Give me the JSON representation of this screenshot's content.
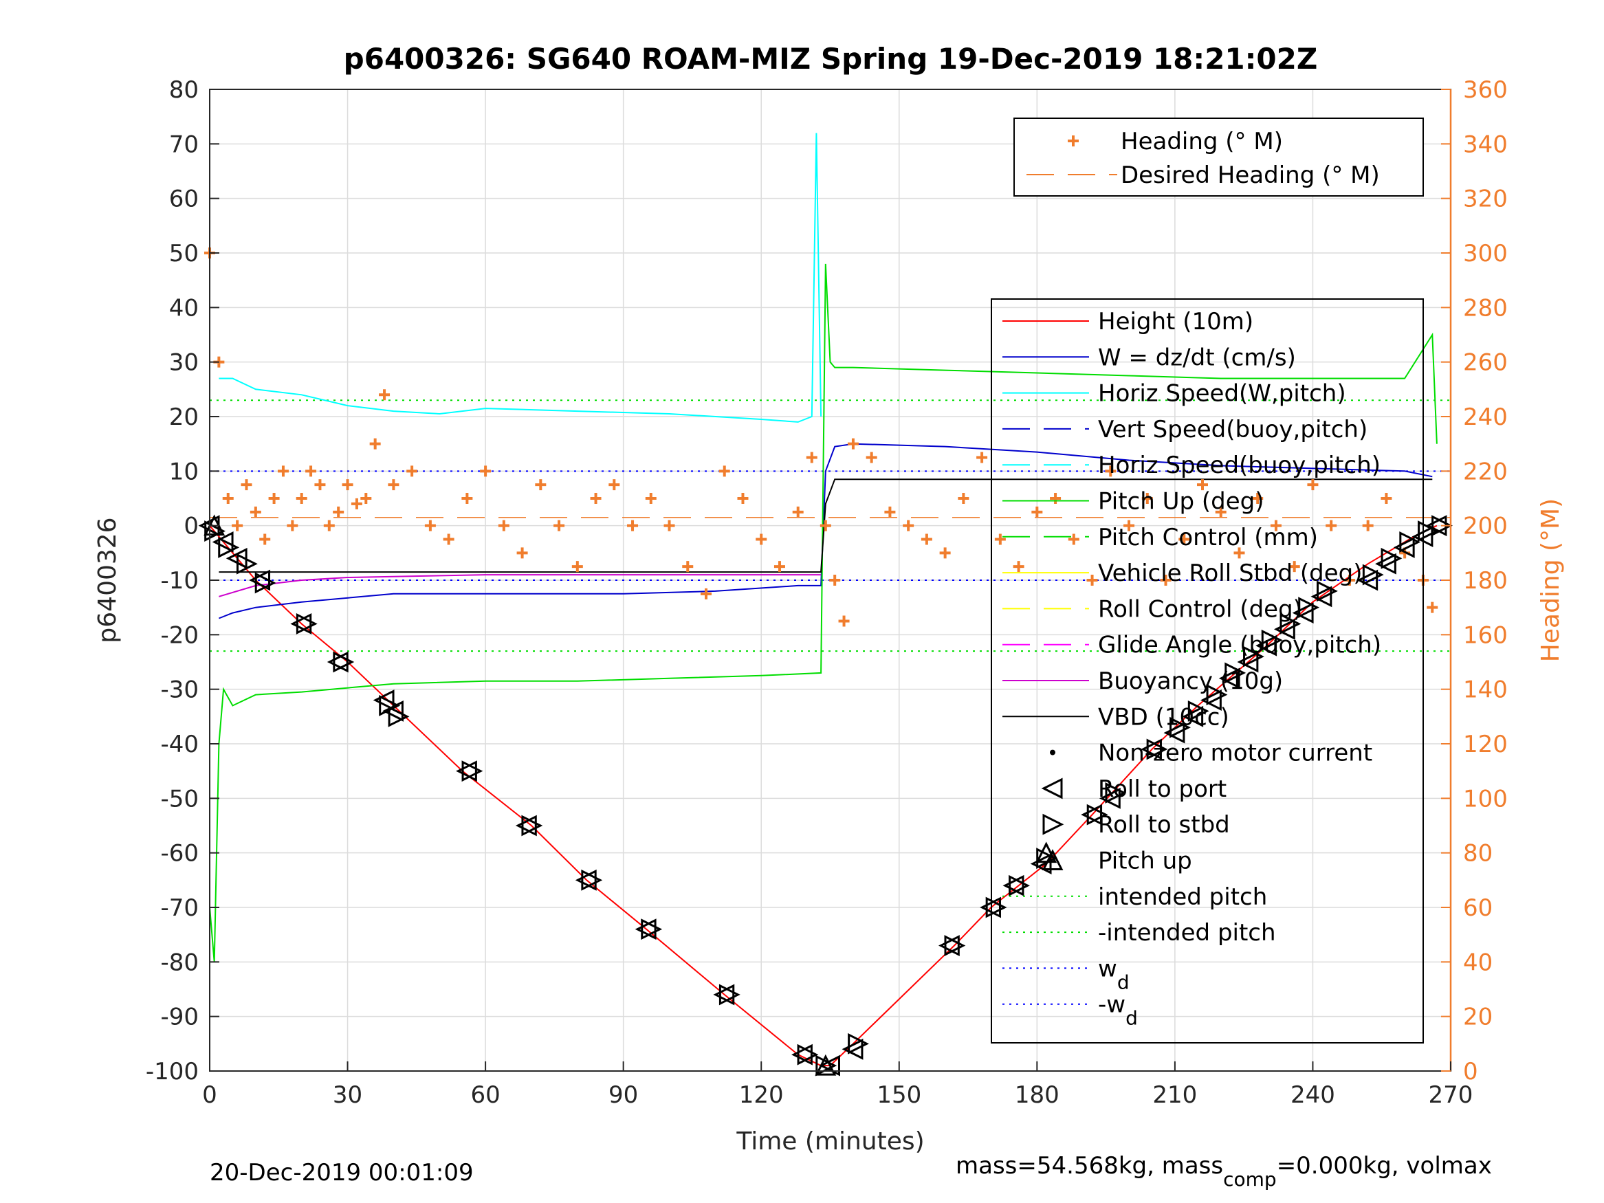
{
  "chart_data": {
    "type": "line",
    "title": "p6400326: SG640 ROAM-MIZ Spring 19-Dec-2019 18:21:02Z",
    "xlabel": "Time (minutes)",
    "ylabel": "p6400326",
    "y2label": "Heading (°M)",
    "xlim": [
      0,
      270
    ],
    "ylim": [
      -100,
      80
    ],
    "y2lim": [
      0,
      360
    ],
    "xticks": [
      0,
      30,
      60,
      90,
      120,
      150,
      180,
      210,
      240,
      270
    ],
    "yticks": [
      80,
      70,
      60,
      50,
      40,
      30,
      20,
      10,
      0,
      -10,
      -20,
      -30,
      -40,
      -50,
      -60,
      -70,
      -80,
      -90,
      -100
    ],
    "y2ticks": [
      360,
      340,
      320,
      300,
      280,
      260,
      240,
      220,
      200,
      180,
      160,
      140,
      120,
      100,
      80,
      60,
      40,
      20,
      0
    ],
    "grid": true,
    "heading_legend": [
      {
        "label": "Heading (° M)",
        "marker": "plus"
      },
      {
        "label": "Desired Heading (° M)",
        "style": "dashed"
      }
    ],
    "legend": [
      {
        "label": "Height (10m)",
        "style": "solid",
        "color": "#ff0000"
      },
      {
        "label": "W = dz/dt (cm/s)",
        "style": "solid",
        "color": "#0000cc"
      },
      {
        "label": "Horiz Speed(W,pitch)",
        "style": "solid",
        "color": "#00ffff"
      },
      {
        "label": "Vert Speed(buoy,pitch)",
        "style": "dashed",
        "color": "#0000cc"
      },
      {
        "label": "Horiz Speed(buoy,pitch)",
        "style": "dashed",
        "color": "#00ffff"
      },
      {
        "label": "Pitch Up (deg)",
        "style": "solid",
        "color": "#00dd00"
      },
      {
        "label": "Pitch Control (mm)",
        "style": "dashed",
        "color": "#00dd00"
      },
      {
        "label": "Vehicle Roll Stbd (deg)",
        "style": "solid",
        "color": "#ffff00"
      },
      {
        "label": "Roll Control (deg)",
        "style": "dashed",
        "color": "#ffff00"
      },
      {
        "label": "Glide Angle (buoy,pitch)",
        "style": "dashed",
        "color": "#ff00ff"
      },
      {
        "label": "Buoyancy (10g)",
        "style": "solid",
        "color": "#cc00cc"
      },
      {
        "label": "VBD (10cc)",
        "style": "solid",
        "color": "#000000"
      },
      {
        "label": "Non-zero motor current",
        "style": "dot",
        "color": "#000000"
      },
      {
        "label": "Roll to port",
        "style": "tri-left",
        "color": "#000000"
      },
      {
        "label": "Roll to stbd",
        "style": "tri-right",
        "color": "#000000"
      },
      {
        "label": "Pitch up",
        "style": "tri-up",
        "color": "#000000"
      },
      {
        "label": "intended pitch",
        "style": "dotted",
        "color": "#00dd00"
      },
      {
        "label": "-intended pitch",
        "style": "dotted",
        "color": "#00dd00"
      },
      {
        "label": "w",
        "sub": "d",
        "style": "dotted",
        "color": "#0000ff"
      },
      {
        "label": "-w",
        "sub": "d",
        "style": "dotted",
        "color": "#0000ff"
      }
    ],
    "series": [
      {
        "name": "Height (10m)",
        "color": "#ff0000",
        "x": [
          0,
          5,
          10,
          20,
          30,
          40,
          55,
          70,
          82,
          95,
          112,
          128,
          133,
          135,
          140,
          162,
          170,
          182,
          192,
          205,
          215,
          230,
          240,
          252,
          262,
          267
        ],
        "y": [
          0,
          -5,
          -10,
          -18,
          -25,
          -33,
          -45,
          -55,
          -65,
          -74,
          -86,
          -97,
          -99,
          -99,
          -95,
          -77,
          -70,
          -62,
          -53,
          -41,
          -33,
          -22,
          -14,
          -7,
          -2,
          0
        ]
      },
      {
        "name": "W = dz/dt (cm/s)",
        "color": "#0000cc",
        "x": [
          2,
          5,
          10,
          20,
          40,
          60,
          90,
          110,
          128,
          130,
          133,
          134,
          136,
          140,
          160,
          180,
          200,
          220,
          240,
          260,
          266
        ],
        "y": [
          -17,
          -16,
          -15,
          -14,
          -12.5,
          -12.5,
          -12.5,
          -12,
          -11,
          -11,
          -11,
          10,
          14.5,
          15,
          14.5,
          13.5,
          12,
          11,
          10.5,
          10,
          9
        ]
      },
      {
        "name": "Horiz Speed(W,pitch)",
        "color": "#00ffff",
        "x": [
          2,
          5,
          10,
          20,
          30,
          40,
          50,
          60,
          80,
          100,
          120,
          128,
          131,
          132,
          133
        ],
        "y": [
          27,
          27,
          25,
          24,
          22,
          21,
          20.5,
          21.5,
          21,
          20.5,
          19.5,
          19,
          20,
          72,
          20
        ]
      },
      {
        "name": "Pitch Up (deg)",
        "color": "#00dd00",
        "x": [
          0,
          1,
          2,
          3,
          5,
          10,
          20,
          40,
          60,
          80,
          100,
          120,
          133,
          134,
          135,
          136,
          140,
          160,
          180,
          200,
          220,
          240,
          260,
          266,
          267
        ],
        "y": [
          -70,
          -80,
          -40,
          -30,
          -33,
          -31,
          -30.5,
          -29,
          -28.5,
          -28.5,
          -28,
          -27.5,
          -27,
          48,
          30,
          29,
          29,
          28.5,
          28,
          27.5,
          27,
          27,
          27,
          35,
          15
        ]
      },
      {
        "name": "Buoyancy (10g)",
        "color": "#cc00cc",
        "x": [
          2,
          10,
          20,
          30,
          60,
          133
        ],
        "y": [
          -13,
          -11,
          -10,
          -9.5,
          -9,
          -9
        ]
      },
      {
        "name": "VBD (10cc)",
        "color": "#000000",
        "x": [
          2,
          60,
          133,
          134,
          136,
          266
        ],
        "y": [
          -8.5,
          -8.5,
          -8.5,
          4,
          8.5,
          8.5
        ]
      }
    ],
    "reference_lines": [
      {
        "name": "intended pitch",
        "y": 23,
        "color": "#00dd00"
      },
      {
        "name": "-intended pitch",
        "y": -23,
        "color": "#00dd00"
      },
      {
        "name": "w_d",
        "y": 10,
        "color": "#0000ff"
      },
      {
        "name": "-w_d",
        "y": -10,
        "color": "#0000ff"
      }
    ],
    "heading": {
      "desired_heading_deg": 203,
      "x": [
        0,
        2,
        4,
        6,
        8,
        10,
        12,
        14,
        16,
        18,
        20,
        22,
        24,
        26,
        28,
        30,
        32,
        34,
        36,
        38,
        40,
        44,
        48,
        52,
        56,
        60,
        64,
        68,
        72,
        76,
        80,
        84,
        88,
        92,
        96,
        100,
        104,
        108,
        112,
        116,
        120,
        124,
        128,
        131,
        134,
        136,
        138,
        140,
        144,
        148,
        152,
        156,
        160,
        164,
        168,
        172,
        176,
        180,
        184,
        188,
        192,
        196,
        200,
        204,
        208,
        212,
        216,
        220,
        224,
        228,
        232,
        236,
        240,
        244,
        248,
        252,
        256,
        260,
        264,
        266
      ],
      "y": [
        300,
        260,
        210,
        200,
        215,
        205,
        195,
        210,
        220,
        200,
        210,
        220,
        215,
        200,
        205,
        215,
        208,
        210,
        230,
        248,
        215,
        220,
        200,
        195,
        210,
        220,
        200,
        190,
        215,
        200,
        185,
        210,
        215,
        200,
        210,
        200,
        185,
        175,
        220,
        210,
        195,
        185,
        205,
        225,
        200,
        180,
        165,
        230,
        225,
        205,
        200,
        195,
        190,
        210,
        225,
        195,
        185,
        205,
        210,
        195,
        180,
        220,
        200,
        210,
        180,
        195,
        215,
        205,
        190,
        210,
        200,
        185,
        215,
        200,
        180,
        200,
        210,
        190,
        180,
        170
      ]
    },
    "markers": {
      "roll_to_port": {
        "x": [
          0,
          3,
          6,
          11,
          20,
          28,
          38,
          40,
          56,
          69,
          82,
          95,
          112,
          129,
          135,
          140,
          161,
          170,
          175,
          181,
          192,
          196,
          205,
          210,
          214,
          218,
          222,
          226,
          230,
          234,
          238,
          242,
          252,
          256,
          260,
          264,
          267
        ],
        "y": [
          0,
          -3,
          -6,
          -10,
          -18,
          -25,
          -32,
          -34,
          -45,
          -55,
          -65,
          -74,
          -86,
          -97,
          -99,
          -96,
          -77,
          -70,
          -66,
          -62,
          -53,
          -50,
          -41,
          -38,
          -35,
          -32,
          -28,
          -25,
          -22,
          -19,
          -16,
          -13,
          -10,
          -7,
          -4,
          -2,
          0
        ]
      },
      "roll_to_stbd": {
        "x": [
          1,
          4,
          8,
          12,
          21,
          29,
          39,
          41,
          57,
          70,
          83,
          96,
          113,
          130,
          134,
          141,
          162,
          171,
          176,
          182,
          193,
          197,
          206,
          211,
          215,
          219,
          223,
          227,
          231,
          235,
          239,
          243,
          253,
          257,
          261,
          265,
          268
        ],
        "y": [
          -1,
          -4,
          -7,
          -10.5,
          -18,
          -25,
          -33,
          -35,
          -45,
          -55,
          -65,
          -74,
          -86,
          -97,
          -99,
          -95,
          -77,
          -70,
          -66,
          -61,
          -53,
          -49,
          -41,
          -37,
          -34,
          -31,
          -27,
          -24,
          -21,
          -18,
          -15,
          -12,
          -9,
          -6,
          -3,
          -1,
          0
        ]
      },
      "pitch_up": {
        "x": [
          1,
          134,
          182
        ],
        "y": [
          0,
          -99,
          -60
        ]
      }
    }
  },
  "footer": {
    "timestamp": "20-Dec-2019 00:01:09",
    "mass_text": "mass=54.568kg, mass",
    "mass_sub": "comp",
    "mass_rest": "=0.000kg, volmax"
  }
}
